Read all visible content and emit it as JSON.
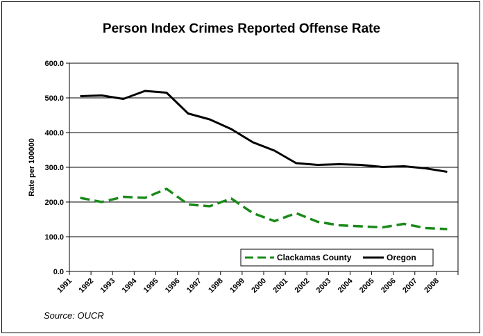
{
  "chart_data": {
    "type": "line",
    "title": "Person Index Crimes Reported Offense Rate",
    "ylabel": "Rate per 100000",
    "xlabel": "",
    "ylim": [
      0,
      600
    ],
    "yticks": [
      "0.0",
      "100.0",
      "200.0",
      "300.0",
      "400.0",
      "500.0",
      "600.0"
    ],
    "grid": true,
    "legend_placement": "bottom-right",
    "categories": [
      "1991",
      "1992",
      "1993",
      "1994",
      "1995",
      "1996",
      "1997",
      "1998",
      "1999",
      "2000",
      "2001",
      "2002",
      "2003",
      "2004",
      "2005",
      "2006",
      "2007",
      "2008"
    ],
    "series": [
      {
        "name": "Clackamas County",
        "color": "#1a8a1a",
        "style": "dashed",
        "values": [
          212,
          200,
          215,
          212,
          238,
          193,
          188,
          210,
          168,
          145,
          168,
          143,
          133,
          130,
          127,
          137,
          125,
          122
        ]
      },
      {
        "name": "Oregon",
        "color": "#000000",
        "style": "solid",
        "values": [
          505,
          507,
          497,
          520,
          515,
          455,
          438,
          410,
          372,
          348,
          312,
          307,
          309,
          307,
          301,
          303,
          297,
          287
        ]
      }
    ],
    "source": "Source: OUCR"
  }
}
